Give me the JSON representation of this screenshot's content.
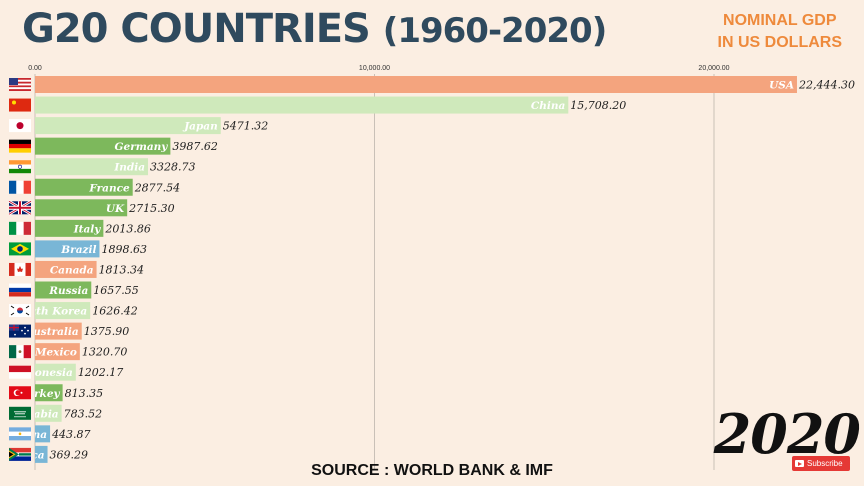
{
  "header": {
    "title_main": "G20 COUNTRIES",
    "title_years": "(1960-2020)",
    "unit_line1": "NOMINAL GDP",
    "unit_line2": "IN US DOLLARS"
  },
  "year": "2020",
  "source": "SOURCE : WORLD BANK & IMF",
  "subscribe_label": "Subscribe",
  "chart_data": {
    "type": "bar",
    "orientation": "horizontal",
    "title": "G20 COUNTRIES (1960-2020)",
    "xlabel": "NOMINAL GDP IN US DOLLARS",
    "xlim": [
      0,
      24000
    ],
    "ticks": [
      {
        "value": 0,
        "label": "0.00"
      },
      {
        "value": 10000,
        "label": "10,000.00"
      },
      {
        "value": 20000,
        "label": "20,000.00"
      }
    ],
    "grid": true,
    "bars": [
      {
        "name": "USA",
        "value": 22444.3,
        "value_label": "22,444.30",
        "color": "#f4a47e",
        "flag": "usa-flag-icon"
      },
      {
        "name": "China",
        "value": 15708.2,
        "value_label": "15,708.20",
        "color": "#cfe9bb",
        "flag": "china-flag-icon"
      },
      {
        "name": "Japan",
        "value": 5471.32,
        "value_label": "5471.32",
        "color": "#cfe9bb",
        "flag": "japan-flag-icon"
      },
      {
        "name": "Germany",
        "value": 3987.62,
        "value_label": "3987.62",
        "color": "#7db85c",
        "flag": "germany-flag-icon"
      },
      {
        "name": "India",
        "value": 3328.73,
        "value_label": "3328.73",
        "color": "#cfe9bb",
        "flag": "india-flag-icon"
      },
      {
        "name": "France",
        "value": 2877.54,
        "value_label": "2877.54",
        "color": "#7db85c",
        "flag": "france-flag-icon"
      },
      {
        "name": "UK",
        "value": 2715.3,
        "value_label": "2715.30",
        "color": "#7db85c",
        "flag": "uk-flag-icon"
      },
      {
        "name": "Italy",
        "value": 2013.86,
        "value_label": "2013.86",
        "color": "#7db85c",
        "flag": "italy-flag-icon"
      },
      {
        "name": "Brazil",
        "value": 1898.63,
        "value_label": "1898.63",
        "color": "#79b6d6",
        "flag": "brazil-flag-icon"
      },
      {
        "name": "Canada",
        "value": 1813.34,
        "value_label": "1813.34",
        "color": "#f4a47e",
        "flag": "canada-flag-icon"
      },
      {
        "name": "Russia",
        "value": 1657.55,
        "value_label": "1657.55",
        "color": "#7db85c",
        "flag": "russia-flag-icon"
      },
      {
        "name": "South Korea",
        "value": 1626.42,
        "value_label": "1626.42",
        "color": "#cfe9bb",
        "flag": "south-korea-flag-icon"
      },
      {
        "name": "Australia",
        "value": 1375.9,
        "value_label": "1375.90",
        "color": "#f4a47e",
        "flag": "australia-flag-icon"
      },
      {
        "name": "Mexico",
        "value": 1320.7,
        "value_label": "1320.70",
        "color": "#f4a47e",
        "flag": "mexico-flag-icon"
      },
      {
        "name": "Indonesia",
        "value": 1202.17,
        "value_label": "1202.17",
        "color": "#cfe9bb",
        "flag": "indonesia-flag-icon"
      },
      {
        "name": "Turkey",
        "value": 813.35,
        "value_label": "813.35",
        "color": "#7db85c",
        "flag": "turkey-flag-icon"
      },
      {
        "name": "Saudi Arabia",
        "value": 783.52,
        "value_label": "783.52",
        "color": "#cfe9bb",
        "flag": "saudi-arabia-flag-icon"
      },
      {
        "name": "Argentina",
        "value": 443.87,
        "value_label": "443.87",
        "color": "#79b6d6",
        "flag": "argentina-flag-icon"
      },
      {
        "name": "South Africa",
        "value": 369.29,
        "value_label": "369.29",
        "color": "#79b6d6",
        "flag": "south-africa-flag-icon"
      }
    ]
  }
}
